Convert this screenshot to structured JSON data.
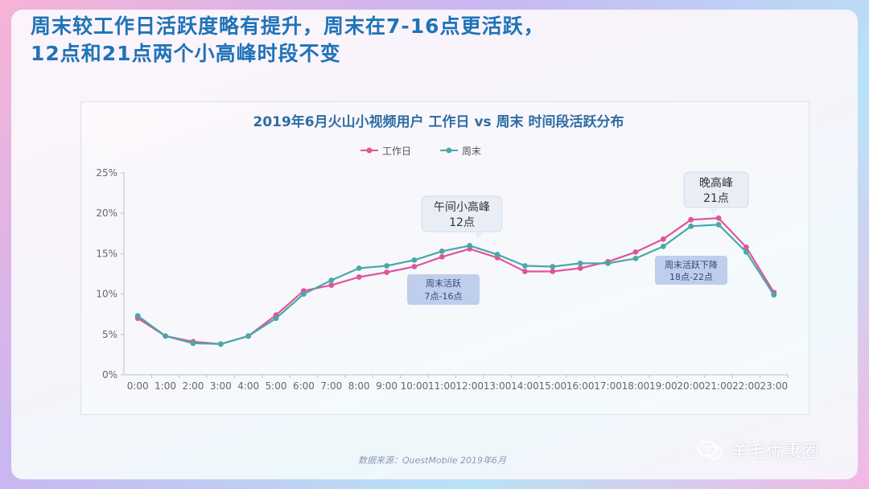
{
  "headline": {
    "line1": "周末较工作日活跃度略有提升，周末在7-16点更活跃，",
    "line2": "12点和21点两个小高峰时段不变"
  },
  "source_note": "数据来源：QuestMobile 2019年6月",
  "watermark": "羊毛优惠圈",
  "chart_data": {
    "type": "line",
    "title": "2019年6月火山小视频用户 工作日 vs 周末 时间段活跃分布",
    "categories": [
      "0:00",
      "1:00",
      "2:00",
      "3:00",
      "4:00",
      "5:00",
      "6:00",
      "7:00",
      "8:00",
      "9:00",
      "10:00",
      "11:00",
      "12:00",
      "13:00",
      "14:00",
      "15:00",
      "16:00",
      "17:00",
      "18:00",
      "19:00",
      "20:00",
      "21:00",
      "22:00",
      "23:00"
    ],
    "y_ticks": [
      "0%",
      "5%",
      "10%",
      "15%",
      "20%",
      "25%"
    ],
    "ylim": [
      0,
      25
    ],
    "series": [
      {
        "name": "工作日",
        "color": "#e0559a",
        "values": [
          7.0,
          4.8,
          4.1,
          3.8,
          4.8,
          7.4,
          10.4,
          11.1,
          12.1,
          12.7,
          13.4,
          14.6,
          15.6,
          14.5,
          12.8,
          12.8,
          13.2,
          14.0,
          15.2,
          16.8,
          19.2,
          19.4,
          15.8,
          10.2
        ]
      },
      {
        "name": "周末",
        "color": "#4aa8a8",
        "values": [
          7.3,
          4.8,
          3.9,
          3.8,
          4.8,
          7.0,
          10.0,
          11.7,
          13.2,
          13.5,
          14.2,
          15.3,
          16.0,
          14.9,
          13.5,
          13.4,
          13.8,
          13.8,
          14.4,
          15.9,
          18.4,
          18.6,
          15.2,
          9.9
        ]
      }
    ],
    "grid": false,
    "legend_position": "top-center",
    "callouts": [
      {
        "line1": "午间小高峰",
        "line2": "12点",
        "category_index": 12
      },
      {
        "line1": "晚高峰",
        "line2": "21点",
        "category_index": 21
      }
    ],
    "range_labels": [
      {
        "line1": "周末活跃",
        "line2": "7点-16点"
      },
      {
        "line1": "周末活跃下降",
        "line2": "18点-22点"
      }
    ]
  }
}
